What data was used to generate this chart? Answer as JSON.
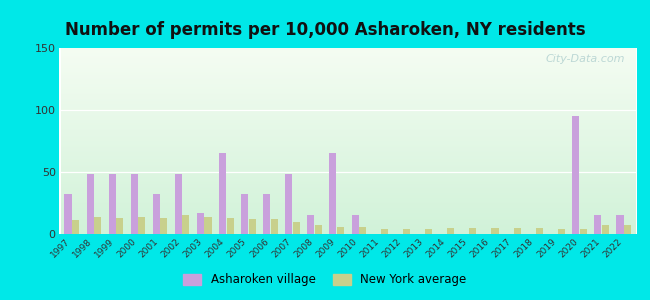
{
  "title": "Number of permits per 10,000 Asharoken, NY residents",
  "years": [
    1997,
    1998,
    1999,
    2000,
    2001,
    2002,
    2003,
    2004,
    2005,
    2006,
    2007,
    2008,
    2009,
    2010,
    2011,
    2012,
    2013,
    2014,
    2015,
    2016,
    2017,
    2018,
    2019,
    2020,
    2021,
    2022
  ],
  "asharoken": [
    32,
    48,
    48,
    48,
    32,
    48,
    17,
    65,
    32,
    32,
    48,
    15,
    65,
    15,
    0,
    0,
    0,
    0,
    0,
    0,
    0,
    0,
    0,
    95,
    15,
    15
  ],
  "ny_average": [
    11,
    14,
    13,
    14,
    13,
    15,
    14,
    13,
    12,
    12,
    10,
    7,
    6,
    6,
    4,
    4,
    4,
    5,
    5,
    5,
    5,
    5,
    4,
    4,
    7,
    7
  ],
  "bar_color_asharoken": "#c9a0dc",
  "bar_color_ny": "#c8d08c",
  "outer_bg": "#00e8e8",
  "ylim": [
    0,
    150
  ],
  "yticks": [
    0,
    50,
    100,
    150
  ],
  "title_fontsize": 12,
  "legend_label_asharoken": "Asharoken village",
  "legend_label_ny": "New York average",
  "watermark": "City-Data.com"
}
